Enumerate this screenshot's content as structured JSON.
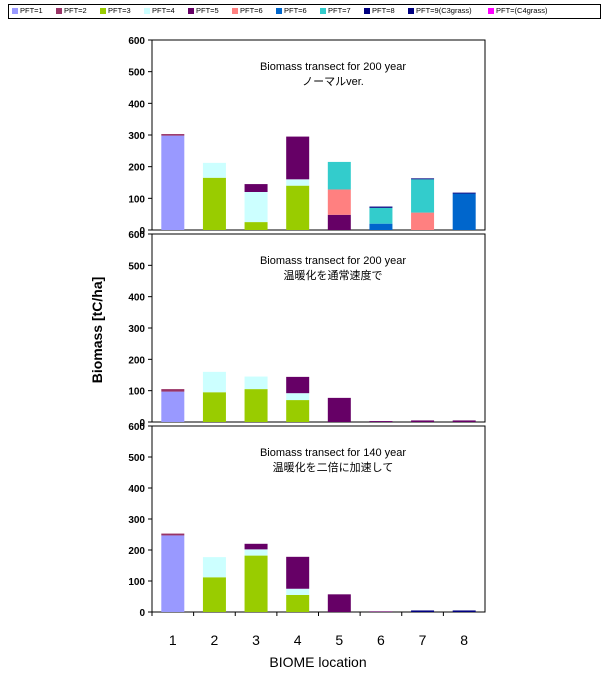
{
  "legend": {
    "items": [
      {
        "label": "PFT=1",
        "color": "#9999ff"
      },
      {
        "label": "PFT=2",
        "color": "#993366"
      },
      {
        "label": "PFT=3",
        "color": "#99cc00"
      },
      {
        "label": "PFT=4",
        "color": "#ccffff"
      },
      {
        "label": "PFT=5",
        "color": "#660066"
      },
      {
        "label": "PFT=6",
        "color": "#ff8080"
      },
      {
        "label": "PFT=6",
        "color": "#0066cc"
      },
      {
        "label": "PFT=7",
        "color": "#33cccc"
      },
      {
        "label": "PFT=8",
        "color": "#000080"
      },
      {
        "label": "PFT=9(C3grass)",
        "color": "#000080"
      },
      {
        "label": "PFT=(C4grass)",
        "color": "#ff00ff"
      }
    ]
  },
  "chart_data": {
    "type": "bar",
    "stacked": true,
    "xlabel": "BIOME location",
    "ylabel": "Biomass [tC/ha]",
    "categories": [
      "1",
      "2",
      "3",
      "4",
      "5",
      "6",
      "7",
      "8"
    ],
    "ylim": [
      0,
      600
    ],
    "yticks": [
      0,
      100,
      200,
      300,
      400,
      500,
      600
    ],
    "panels": [
      {
        "title_line1": "Biomass transect for 200 year",
        "title_line2": "ノーマルver.",
        "series": [
          {
            "name": "PFT=1",
            "color": "#9999ff",
            "values": [
              298,
              0,
              0,
              0,
              0,
              0,
              0,
              0
            ]
          },
          {
            "name": "PFT=2",
            "color": "#993366",
            "values": [
              5,
              0,
              0,
              0,
              0,
              0,
              0,
              0
            ]
          },
          {
            "name": "PFT=3",
            "color": "#99cc00",
            "values": [
              0,
              165,
              25,
              140,
              0,
              0,
              0,
              0
            ]
          },
          {
            "name": "PFT=4",
            "color": "#ccffff",
            "values": [
              0,
              47,
              95,
              20,
              0,
              0,
              0,
              0
            ]
          },
          {
            "name": "PFT=5",
            "color": "#660066",
            "values": [
              0,
              0,
              25,
              135,
              48,
              0,
              0,
              0
            ]
          },
          {
            "name": "PFT=6",
            "color": "#ff8080",
            "values": [
              0,
              0,
              0,
              0,
              80,
              0,
              55,
              0
            ]
          },
          {
            "name": "PFT=6",
            "color": "#0066cc",
            "values": [
              0,
              0,
              0,
              0,
              0,
              20,
              0,
              115
            ]
          },
          {
            "name": "PFT=7",
            "color": "#33cccc",
            "values": [
              0,
              0,
              0,
              0,
              87,
              50,
              105,
              0
            ]
          },
          {
            "name": "PFT=8",
            "color": "#000080",
            "values": [
              0,
              0,
              0,
              0,
              0,
              4,
              3,
              3
            ]
          },
          {
            "name": "PFT=9(C3grass)",
            "color": "#000080",
            "values": [
              0,
              0,
              0,
              0,
              0,
              0,
              0,
              0
            ]
          },
          {
            "name": "PFT=(C4grass)",
            "color": "#ff00ff",
            "values": [
              0,
              0,
              0,
              0,
              0,
              0,
              0,
              0
            ]
          }
        ]
      },
      {
        "title_line1": "Biomass transect for 200 year",
        "title_line2": "温暖化を通常速度で",
        "series": [
          {
            "name": "PFT=1",
            "color": "#9999ff",
            "values": [
              97,
              0,
              0,
              0,
              0,
              0,
              0,
              0
            ]
          },
          {
            "name": "PFT=2",
            "color": "#993366",
            "values": [
              8,
              0,
              0,
              0,
              0,
              0,
              0,
              0
            ]
          },
          {
            "name": "PFT=3",
            "color": "#99cc00",
            "values": [
              0,
              95,
              105,
              70,
              0,
              0,
              0,
              0
            ]
          },
          {
            "name": "PFT=4",
            "color": "#ccffff",
            "values": [
              0,
              65,
              40,
              22,
              0,
              0,
              0,
              0
            ]
          },
          {
            "name": "PFT=5",
            "color": "#660066",
            "values": [
              0,
              0,
              0,
              52,
              77,
              3,
              5,
              5
            ]
          },
          {
            "name": "PFT=6",
            "color": "#ff8080",
            "values": [
              0,
              0,
              0,
              0,
              0,
              0,
              0,
              0
            ]
          },
          {
            "name": "PFT=6",
            "color": "#0066cc",
            "values": [
              0,
              0,
              0,
              0,
              0,
              0,
              0,
              0
            ]
          },
          {
            "name": "PFT=7",
            "color": "#33cccc",
            "values": [
              0,
              0,
              0,
              0,
              0,
              0,
              0,
              0
            ]
          },
          {
            "name": "PFT=8",
            "color": "#000080",
            "values": [
              0,
              0,
              0,
              0,
              0,
              0,
              0,
              0
            ]
          },
          {
            "name": "PFT=9(C3grass)",
            "color": "#000080",
            "values": [
              0,
              0,
              0,
              0,
              0,
              0,
              0,
              0
            ]
          },
          {
            "name": "PFT=(C4grass)",
            "color": "#ff00ff",
            "values": [
              0,
              0,
              0,
              0,
              0,
              0,
              0,
              0
            ]
          }
        ]
      },
      {
        "title_line1": "Biomass transect for 140 year",
        "title_line2": "温暖化を二倍に加速して",
        "series": [
          {
            "name": "PFT=1",
            "color": "#9999ff",
            "values": [
              247,
              0,
              0,
              0,
              0,
              0,
              0,
              0
            ]
          },
          {
            "name": "PFT=2",
            "color": "#993366",
            "values": [
              6,
              0,
              0,
              0,
              0,
              0,
              0,
              0
            ]
          },
          {
            "name": "PFT=3",
            "color": "#99cc00",
            "values": [
              0,
              112,
              182,
              55,
              0,
              0,
              0,
              0
            ]
          },
          {
            "name": "PFT=4",
            "color": "#ccffff",
            "values": [
              0,
              65,
              20,
              20,
              0,
              0,
              0,
              0
            ]
          },
          {
            "name": "PFT=5",
            "color": "#660066",
            "values": [
              0,
              0,
              18,
              103,
              57,
              2,
              0,
              0
            ]
          },
          {
            "name": "PFT=6",
            "color": "#ff8080",
            "values": [
              0,
              0,
              0,
              0,
              0,
              0,
              0,
              0
            ]
          },
          {
            "name": "PFT=6",
            "color": "#0066cc",
            "values": [
              0,
              0,
              0,
              0,
              0,
              0,
              0,
              0
            ]
          },
          {
            "name": "PFT=7",
            "color": "#33cccc",
            "values": [
              0,
              0,
              0,
              0,
              0,
              0,
              0,
              0
            ]
          },
          {
            "name": "PFT=8",
            "color": "#000080",
            "values": [
              0,
              0,
              0,
              0,
              0,
              0,
              5,
              5
            ]
          },
          {
            "name": "PFT=9(C3grass)",
            "color": "#000080",
            "values": [
              0,
              0,
              0,
              0,
              0,
              0,
              0,
              0
            ]
          },
          {
            "name": "PFT=(C4grass)",
            "color": "#ff00ff",
            "values": [
              0,
              0,
              0,
              0,
              0,
              0,
              0,
              0
            ]
          }
        ]
      }
    ]
  }
}
